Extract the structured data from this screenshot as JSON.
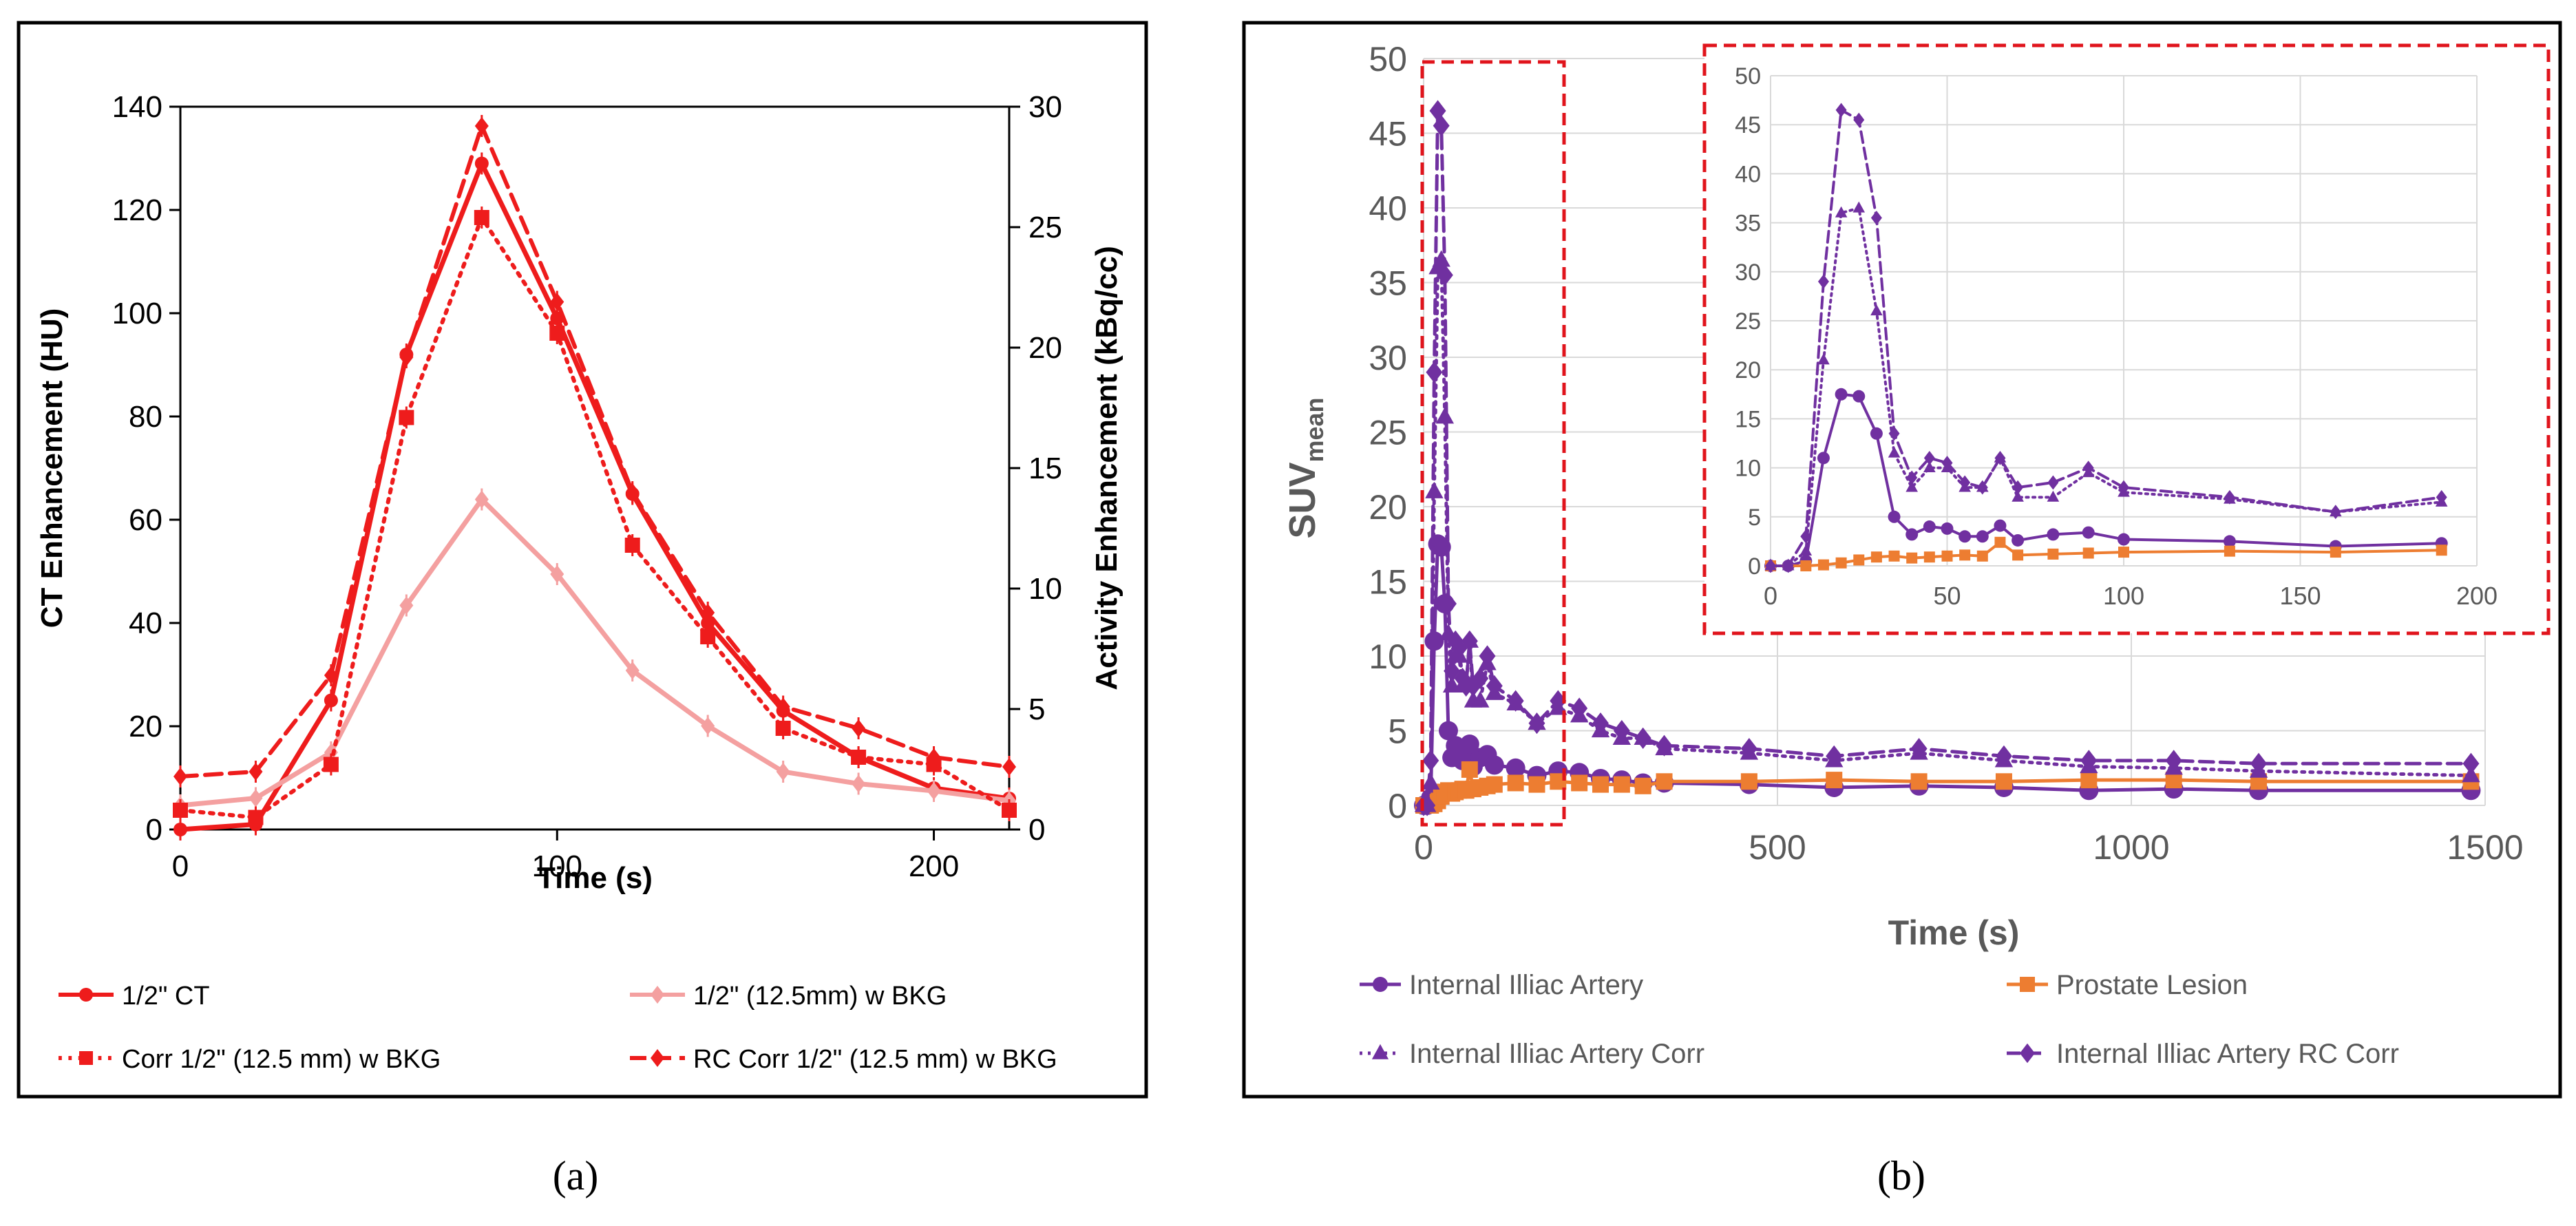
{
  "chart_data": [
    {
      "panel": "(a)",
      "type": "line",
      "xlabel": "Time (s)",
      "ylabel_left": "CT Enhancement (HU)",
      "ylabel_right": "Activity Enhancement (kBq/cc)",
      "xlim": [
        0,
        220
      ],
      "ylim_left": [
        0,
        140
      ],
      "ylim_right": [
        0,
        30
      ],
      "x_ticks": [
        "0",
        "100",
        "200"
      ],
      "y_ticks_left": [
        "0",
        "20",
        "40",
        "60",
        "80",
        "100",
        "120",
        "140"
      ],
      "y_ticks_right": [
        "0",
        "5",
        "10",
        "15",
        "20",
        "25",
        "30"
      ],
      "series": [
        {
          "name": "1/2\" CT",
          "axis": "left",
          "color": "#ee1c1c",
          "style": "solid",
          "marker": "circle",
          "x": [
            0,
            20,
            40,
            60,
            80,
            100,
            120,
            140,
            160,
            180,
            200,
            220
          ],
          "y": [
            0,
            1,
            25,
            92,
            129,
            99,
            65,
            40,
            23,
            14,
            8,
            6
          ]
        },
        {
          "name": "1/2\" (12.5mm) w BKG",
          "axis": "right",
          "color": "#f4a0a0",
          "style": "solid",
          "marker": "diamond",
          "x": [
            0,
            20,
            40,
            60,
            80,
            100,
            120,
            140,
            160,
            180,
            200,
            220
          ],
          "y": [
            1.0,
            1.3,
            3.2,
            9.3,
            13.7,
            10.6,
            6.6,
            4.3,
            2.4,
            1.9,
            1.6,
            1.2
          ]
        },
        {
          "name": "Corr 1/2\" (12.5 mm) w BKG",
          "axis": "right",
          "color": "#ee1c1c",
          "style": "dotted",
          "marker": "square",
          "x": [
            0,
            20,
            40,
            60,
            80,
            100,
            120,
            140,
            160,
            180,
            200,
            220
          ],
          "y": [
            0.8,
            0.5,
            2.7,
            17.1,
            25.4,
            20.6,
            11.8,
            8.0,
            4.2,
            3.0,
            2.7,
            0.8
          ]
        },
        {
          "name": "RC Corr 1/2\" (12.5 mm) w BKG",
          "axis": "right",
          "color": "#ee1c1c",
          "style": "dashed",
          "marker": "diamond",
          "x": [
            0,
            20,
            40,
            60,
            80,
            100,
            120,
            140,
            160,
            180,
            200,
            220
          ],
          "y": [
            2.2,
            2.4,
            6.4,
            19.6,
            29.2,
            21.9,
            14.0,
            9.0,
            5.1,
            4.2,
            3.0,
            2.6
          ]
        }
      ]
    },
    {
      "panel": "(b)",
      "type": "line",
      "xlabel": "Time (s)",
      "ylabel": "SUV",
      "ylabel_subscript": "mean",
      "xlim": [
        0,
        1500
      ],
      "ylim": [
        0,
        50
      ],
      "x_ticks": [
        "0",
        "500",
        "1000",
        "1500"
      ],
      "y_ticks": [
        "0",
        "5",
        "10",
        "15",
        "20",
        "25",
        "30",
        "35",
        "40",
        "45",
        "50"
      ],
      "grid": true,
      "series": [
        {
          "name": "Internal Illiac Artery",
          "color": "#7030a0",
          "style": "solid",
          "marker": "circle",
          "x": [
            0,
            5,
            10,
            15,
            20,
            25,
            30,
            35,
            40,
            45,
            50,
            55,
            60,
            65,
            70,
            80,
            90,
            100,
            130,
            160,
            190,
            220,
            250,
            280,
            310,
            340,
            460,
            580,
            700,
            820,
            940,
            1060,
            1180,
            1480
          ],
          "y": [
            0,
            0,
            0.5,
            11,
            17.5,
            17.3,
            13.5,
            5,
            3.2,
            4,
            3.8,
            3,
            3,
            4.1,
            2.6,
            3.2,
            3.4,
            2.7,
            2.5,
            2,
            2.3,
            2.2,
            1.8,
            1.7,
            1.5,
            1.5,
            1.4,
            1.2,
            1.3,
            1.2,
            1.0,
            1.1,
            1.0,
            1.0
          ]
        },
        {
          "name": "Prostate Lesion",
          "color": "#ed7d31",
          "style": "solid",
          "marker": "square",
          "x": [
            0,
            10,
            15,
            20,
            25,
            30,
            35,
            40,
            45,
            50,
            55,
            60,
            65,
            70,
            80,
            90,
            100,
            130,
            160,
            190,
            220,
            250,
            280,
            310,
            340,
            460,
            580,
            700,
            820,
            940,
            1060,
            1180,
            1480
          ],
          "y": [
            0,
            0,
            0.1,
            0.3,
            0.6,
            0.9,
            1,
            0.8,
            0.9,
            1,
            1.1,
            1.0,
            2.4,
            1.1,
            1.2,
            1.3,
            1.4,
            1.5,
            1.4,
            1.6,
            1.5,
            1.4,
            1.4,
            1.3,
            1.6,
            1.6,
            1.7,
            1.6,
            1.6,
            1.7,
            1.7,
            1.6,
            1.6
          ]
        },
        {
          "name": "Internal Illiac Artery Corr",
          "color": "#7030a0",
          "style": "dotted",
          "marker": "triangle",
          "x": [
            0,
            5,
            10,
            15,
            20,
            25,
            30,
            35,
            40,
            45,
            50,
            55,
            60,
            65,
            70,
            80,
            90,
            100,
            130,
            160,
            190,
            220,
            250,
            280,
            310,
            340,
            460,
            580,
            700,
            820,
            940,
            1060,
            1180,
            1480
          ],
          "y": [
            0,
            0,
            1.5,
            21,
            36,
            36.5,
            26,
            11.5,
            8,
            10,
            10,
            8,
            8,
            11,
            7,
            7,
            9.5,
            7.5,
            6.8,
            5.5,
            6.5,
            6,
            5,
            4.5,
            4.5,
            3.8,
            3.5,
            3,
            3.5,
            3,
            2.6,
            2.5,
            2.3,
            2.0
          ]
        },
        {
          "name": "Internal Illiac Artery RC Corr",
          "color": "#7030a0",
          "style": "dashed",
          "marker": "diamond",
          "x": [
            0,
            5,
            10,
            15,
            20,
            25,
            30,
            35,
            40,
            45,
            50,
            55,
            60,
            65,
            70,
            80,
            90,
            100,
            130,
            160,
            190,
            220,
            250,
            280,
            310,
            340,
            460,
            580,
            700,
            820,
            940,
            1060,
            1180,
            1480
          ],
          "y": [
            0,
            0,
            3,
            29,
            46.5,
            45.5,
            35.5,
            13.5,
            9,
            11,
            10.5,
            8.5,
            8,
            11,
            8,
            8.5,
            10,
            8,
            7,
            5.5,
            7,
            6.5,
            5.5,
            5,
            4.5,
            4,
            3.8,
            3.3,
            3.8,
            3.3,
            3.0,
            3.0,
            2.8,
            2.8
          ]
        }
      ],
      "inset": {
        "xlim": [
          0,
          200
        ],
        "ylim": [
          0,
          50
        ],
        "x_ticks": [
          "0",
          "50",
          "100",
          "150",
          "200"
        ],
        "y_ticks": [
          "0",
          "5",
          "10",
          "15",
          "20",
          "25",
          "30",
          "35",
          "40",
          "45",
          "50"
        ]
      }
    }
  ],
  "captions": [
    "(a)",
    "(b)"
  ]
}
